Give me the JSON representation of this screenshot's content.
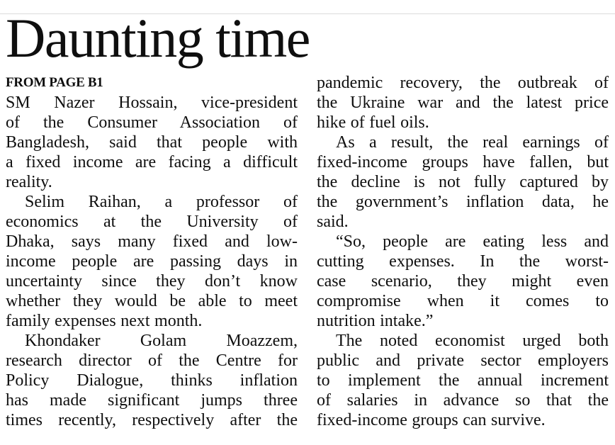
{
  "article": {
    "title": "Daunting time",
    "kicker": "FROM PAGE B1",
    "colors": {
      "background": "#ffffff",
      "text": "#0f0f0f",
      "top_edge_line": "#dcdcdc"
    },
    "columns": [
      {
        "blocks": [
          {
            "indent": false,
            "justify_last": false,
            "lines": [
              "SM Nazer Hossain, vice-president",
              "of the Consumer Association of",
              "Bangladesh, said that people with",
              "a fixed income are facing a difficult",
              "reality."
            ]
          },
          {
            "indent": true,
            "justify_last": false,
            "lines": [
              "Selim Raihan, a professor of",
              "economics at the University of",
              "Dhaka, says many fixed and low-",
              "income people are passing days in",
              "uncertainty since they don’t know",
              "whether they would be able to meet",
              "family expenses next month."
            ]
          },
          {
            "indent": true,
            "justify_last": true,
            "lines": [
              "Khondaker Golam Moazzem,",
              "research director of the Centre for",
              "Policy Dialogue, thinks inflation",
              "has made significant jumps three",
              "times recently, respectively after the"
            ]
          }
        ]
      },
      {
        "blocks": [
          {
            "indent": false,
            "justify_last": false,
            "lines": [
              "pandemic recovery, the outbreak of",
              "the Ukraine war and the latest price",
              "hike of fuel oils."
            ]
          },
          {
            "indent": true,
            "justify_last": false,
            "lines": [
              "As a result, the real earnings of",
              "fixed-income groups have fallen, but",
              "the decline is not fully captured by",
              "the government’s inflation data, he",
              "said."
            ]
          },
          {
            "indent": true,
            "justify_last": false,
            "lines": [
              "“So, people are eating less and",
              "cutting expenses. In the worst-",
              "case scenario, they might even",
              "compromise when it comes to",
              "nutrition intake.”"
            ]
          },
          {
            "indent": true,
            "justify_last": false,
            "lines": [
              "The noted economist urged both",
              "public and private sector employers",
              "to implement the annual increment",
              "of salaries in advance so that the",
              "fixed-income groups can survive."
            ]
          }
        ]
      }
    ]
  }
}
